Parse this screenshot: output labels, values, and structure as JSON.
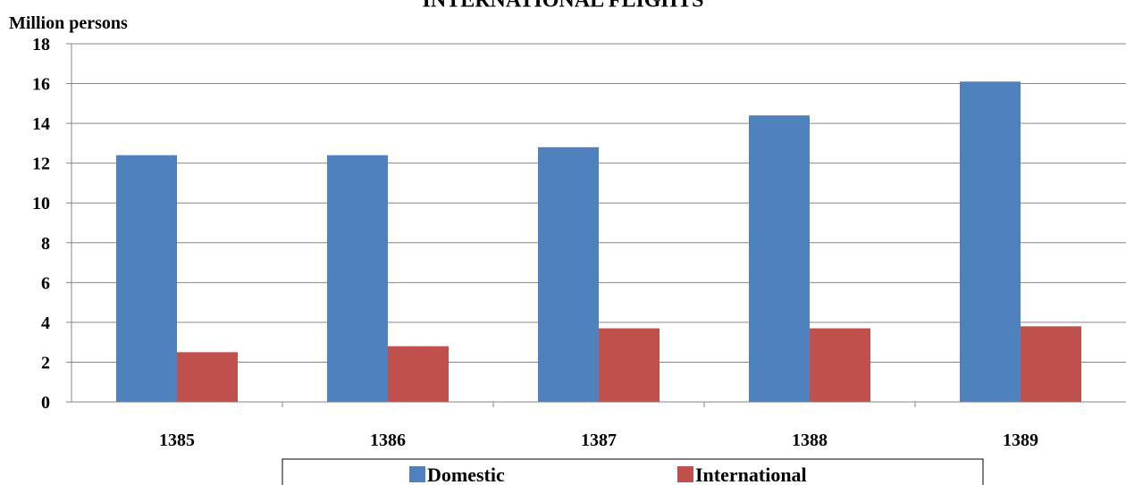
{
  "chart_data": {
    "type": "bar",
    "title": "INTERNATIONAL FLIGHTS",
    "ylabel": "Million persons",
    "xlabel": "",
    "categories": [
      "1385",
      "1386",
      "1387",
      "1388",
      "1389"
    ],
    "series": [
      {
        "name": "Domestic",
        "color": "#4f81bd",
        "values": [
          12.4,
          12.4,
          12.8,
          14.4,
          16.1
        ]
      },
      {
        "name": "International",
        "color": "#c0504d",
        "values": [
          2.5,
          2.8,
          3.7,
          3.7,
          3.8
        ]
      }
    ],
    "ylim": [
      0,
      18
    ],
    "yticks": [
      "0",
      "2",
      "4",
      "6",
      "8",
      "10",
      "12",
      "14",
      "16",
      "18"
    ],
    "grid": true,
    "legend_position": "bottom"
  }
}
